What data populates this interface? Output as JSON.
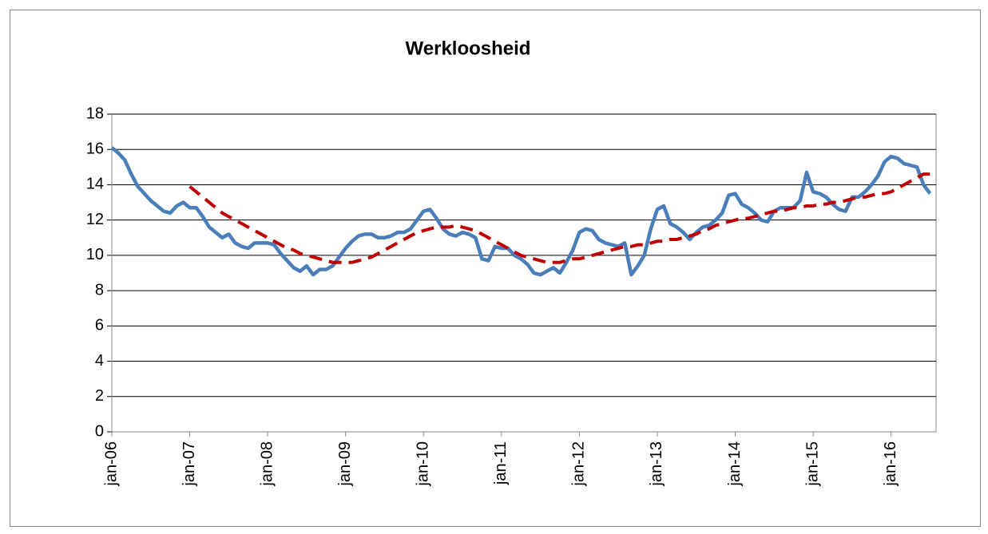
{
  "chart_data": {
    "type": "line",
    "title": "Werkloosheid",
    "categories": [
      "jan-06",
      null,
      null,
      null,
      null,
      null,
      null,
      null,
      null,
      null,
      null,
      null,
      "jan-07",
      null,
      null,
      null,
      null,
      null,
      null,
      null,
      null,
      null,
      null,
      null,
      "jan-08",
      null,
      null,
      null,
      null,
      null,
      null,
      null,
      null,
      null,
      null,
      null,
      "jan-09",
      null,
      null,
      null,
      null,
      null,
      null,
      null,
      null,
      null,
      null,
      null,
      "jan-10",
      null,
      null,
      null,
      null,
      null,
      null,
      null,
      null,
      null,
      null,
      null,
      "jan-11",
      null,
      null,
      null,
      null,
      null,
      null,
      null,
      null,
      null,
      null,
      null,
      "jan-12",
      null,
      null,
      null,
      null,
      null,
      null,
      null,
      null,
      null,
      null,
      null,
      "jan-13",
      null,
      null,
      null,
      null,
      null,
      null,
      null,
      null,
      null,
      null,
      null,
      "jan-14",
      null,
      null,
      null,
      null,
      null,
      null,
      null,
      null,
      null,
      null,
      null,
      "jan-15",
      null,
      null,
      null,
      null,
      null,
      null,
      null,
      null,
      null,
      null,
      null,
      "jan-16",
      null,
      null,
      null,
      null,
      null,
      null
    ],
    "series": [
      {
        "color": "#4a7ebb",
        "dashed": false,
        "values": [
          16.1,
          15.8,
          15.4,
          14.6,
          13.9,
          13.5,
          13.1,
          12.8,
          12.5,
          12.4,
          12.8,
          13.0,
          12.7,
          12.7,
          12.2,
          11.6,
          11.3,
          11.0,
          11.2,
          10.7,
          10.5,
          10.4,
          10.7,
          10.7,
          10.7,
          10.6,
          10.1,
          9.7,
          9.3,
          9.1,
          9.4,
          8.9,
          9.2,
          9.2,
          9.4,
          9.9,
          10.4,
          10.8,
          11.1,
          11.2,
          11.2,
          11.0,
          11.0,
          11.1,
          11.3,
          11.3,
          11.5,
          12.0,
          12.5,
          12.6,
          12.1,
          11.5,
          11.2,
          11.1,
          11.3,
          11.2,
          11.0,
          9.8,
          9.7,
          10.5,
          10.4,
          10.4,
          10.0,
          9.8,
          9.5,
          9.0,
          8.9,
          9.1,
          9.3,
          9.0,
          9.6,
          10.3,
          11.3,
          11.5,
          11.4,
          10.9,
          10.7,
          10.6,
          10.5,
          10.7,
          8.9,
          9.4,
          10.0,
          11.5,
          12.6,
          12.8,
          11.8,
          11.6,
          11.3,
          10.9,
          11.3,
          11.6,
          11.7,
          12.0,
          12.4,
          13.4,
          13.5,
          12.9,
          12.7,
          12.4,
          12.0,
          11.9,
          12.5,
          12.7,
          12.7,
          12.7,
          13.1,
          14.7,
          13.6,
          13.5,
          13.3,
          12.9,
          12.6,
          12.5,
          13.3,
          13.3,
          13.6,
          14.0,
          14.5,
          15.3,
          15.6,
          15.5,
          15.2,
          15.1,
          15.0,
          14.0,
          13.5
        ]
      },
      {
        "color": "#c00000",
        "dashed": true,
        "values": [
          null,
          null,
          null,
          null,
          null,
          null,
          null,
          null,
          null,
          null,
          null,
          null,
          13.9,
          13.6,
          13.3,
          13.0,
          12.7,
          12.4,
          12.2,
          12.0,
          11.8,
          11.6,
          11.4,
          11.2,
          11.0,
          10.8,
          10.6,
          10.4,
          10.3,
          10.1,
          10.0,
          9.9,
          9.8,
          9.7,
          9.6,
          9.6,
          9.6,
          9.6,
          9.7,
          9.8,
          9.9,
          10.1,
          10.3,
          10.5,
          10.7,
          10.9,
          11.1,
          11.3,
          11.4,
          11.5,
          11.6,
          11.6,
          11.6,
          11.7,
          11.6,
          11.5,
          11.4,
          11.2,
          11.0,
          10.8,
          10.6,
          10.4,
          10.2,
          10.0,
          9.9,
          9.8,
          9.7,
          9.6,
          9.6,
          9.6,
          9.7,
          9.8,
          9.8,
          9.9,
          10.0,
          10.1,
          10.2,
          10.3,
          10.4,
          10.5,
          10.5,
          10.6,
          10.6,
          10.7,
          10.8,
          10.8,
          10.9,
          10.9,
          11.0,
          11.1,
          11.2,
          11.4,
          11.5,
          11.7,
          11.8,
          11.9,
          12.0,
          12.1,
          12.1,
          12.2,
          12.3,
          12.4,
          12.5,
          12.5,
          12.6,
          12.7,
          12.7,
          12.8,
          12.8,
          12.9,
          12.9,
          13.0,
          13.0,
          13.1,
          13.2,
          13.3,
          13.3,
          13.4,
          13.5,
          13.5,
          13.6,
          13.8,
          14.0,
          14.2,
          14.4,
          14.6,
          14.6
        ]
      }
    ],
    "ylim": [
      0,
      18
    ],
    "yticks": [
      0,
      2,
      4,
      6,
      8,
      10,
      12,
      14,
      16,
      18
    ],
    "grid": true
  }
}
